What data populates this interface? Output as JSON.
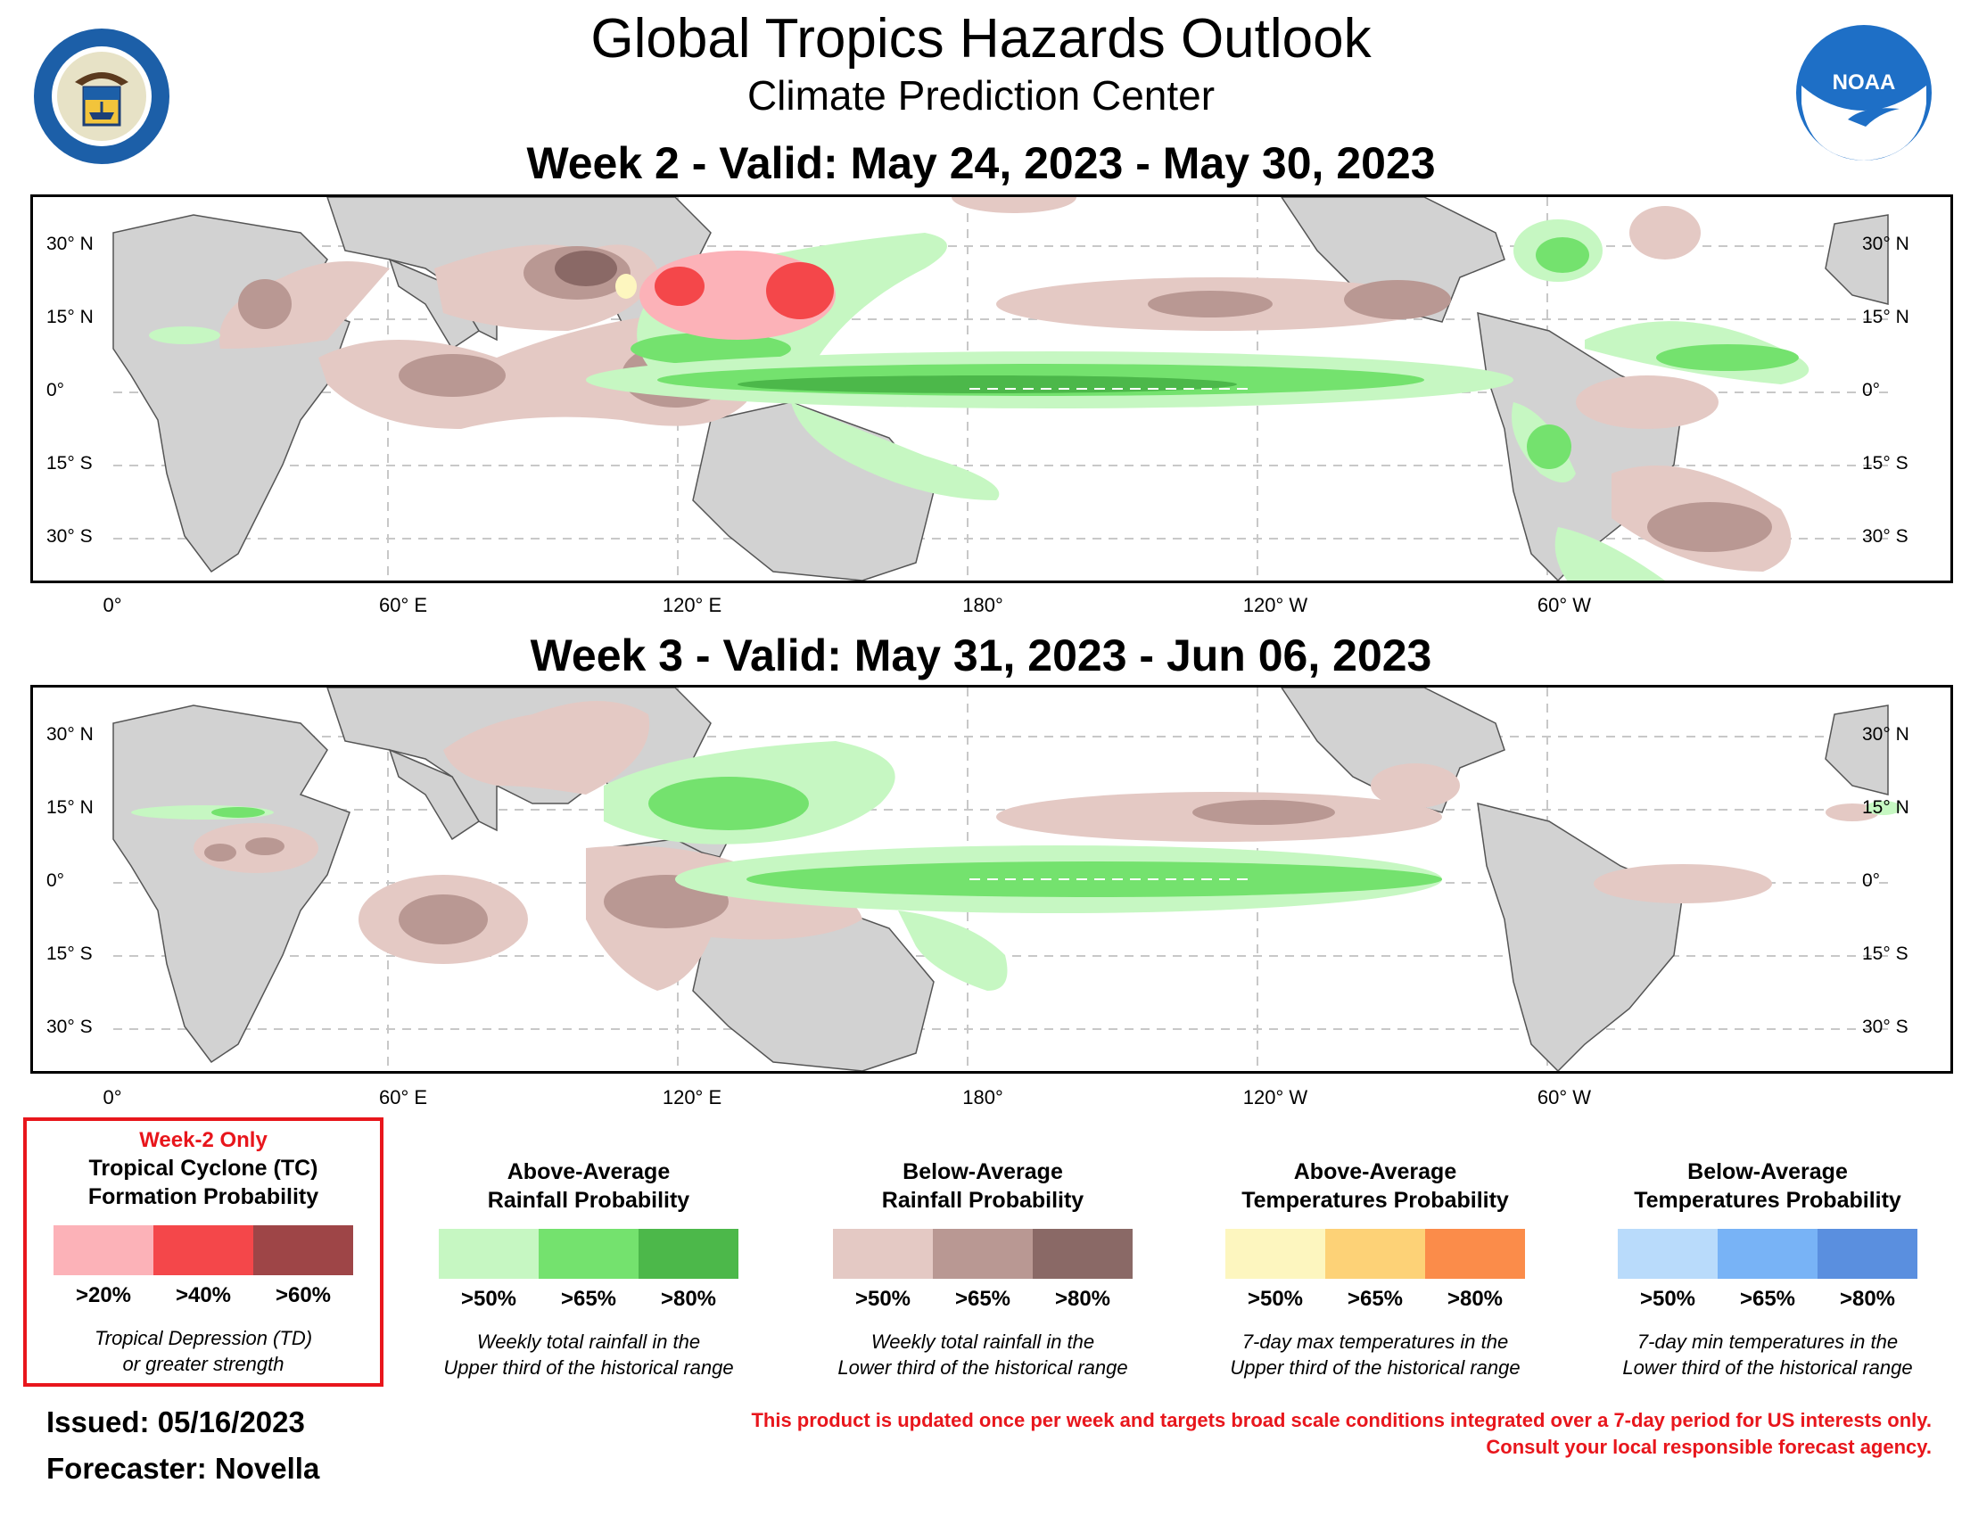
{
  "header": {
    "title": "Global Tropics Hazards Outlook",
    "subtitle": "Climate Prediction Center",
    "doc_logo_text": "DEPARTMENT OF COMMERCE · UNITED STATES OF AMERICA",
    "noaa_logo_text": "NOAA"
  },
  "axes": {
    "lat_labels_left": [
      "30° N",
      "15° N",
      "0°",
      "15° S",
      "30° S"
    ],
    "lat_labels_right": [
      "30° N",
      "15° N",
      "0°",
      "15° S",
      "30° S"
    ],
    "lon_labels": [
      "0°",
      "60° E",
      "120° E",
      "180°",
      "120° W",
      "60° W"
    ]
  },
  "week2": {
    "title": "Week 2 - Valid: May 24, 2023 - May 30, 2023"
  },
  "week3": {
    "title": "Week 3 - Valid: May 31, 2023 - Jun 06, 2023"
  },
  "legends": {
    "tc": {
      "badge": "Week-2 Only",
      "title_line1": "Tropical Cyclone (TC)",
      "title_line2": "Formation Probability",
      "colors": [
        "#fcb2b8",
        "#f4474a",
        "#9e4547"
      ],
      "ticks": [
        ">20%",
        ">40%",
        ">60%"
      ],
      "note_line1": "Tropical Depression (TD)",
      "note_line2": "or greater strength"
    },
    "above_rain": {
      "title_line1": "Above-Average",
      "title_line2": "Rainfall Probability",
      "colors": [
        "#c6f7c2",
        "#74e26e",
        "#4cb84a"
      ],
      "ticks": [
        ">50%",
        ">65%",
        ">80%"
      ],
      "note_line1": "Weekly total rainfall in the",
      "note_line2": "Upper third of the historical range"
    },
    "below_rain": {
      "title_line1": "Below-Average",
      "title_line2": "Rainfall Probability",
      "colors": [
        "#e4c9c4",
        "#b99893",
        "#8a6966"
      ],
      "ticks": [
        ">50%",
        ">65%",
        ">80%"
      ],
      "note_line1": "Weekly total rainfall in the",
      "note_line2": "Lower third of the historical range"
    },
    "above_temp": {
      "title_line1": "Above-Average",
      "title_line2": "Temperatures Probability",
      "colors": [
        "#fdf6bf",
        "#fdd277",
        "#fb8c4a"
      ],
      "ticks": [
        ">50%",
        ">65%",
        ">80%"
      ],
      "note_line1": "7-day max temperatures in the",
      "note_line2": "Upper third of the historical range"
    },
    "below_temp": {
      "title_line1": "Below-Average",
      "title_line2": "Temperatures Probability",
      "colors": [
        "#b9dbfb",
        "#78b3f6",
        "#5a8fdf"
      ],
      "ticks": [
        ">50%",
        ">65%",
        ">80%"
      ],
      "note_line1": "7-day min temperatures in the",
      "note_line2": "Lower third of the historical range"
    }
  },
  "footer": {
    "issued": "Issued: 05/16/2023",
    "forecaster": "Forecaster: Novella",
    "disclaimer_line1": "This product is updated once per week and targets broad scale conditions integrated over a 7-day period for US interests only.",
    "disclaimer_line2": "Consult your local responsible forecast agency."
  }
}
